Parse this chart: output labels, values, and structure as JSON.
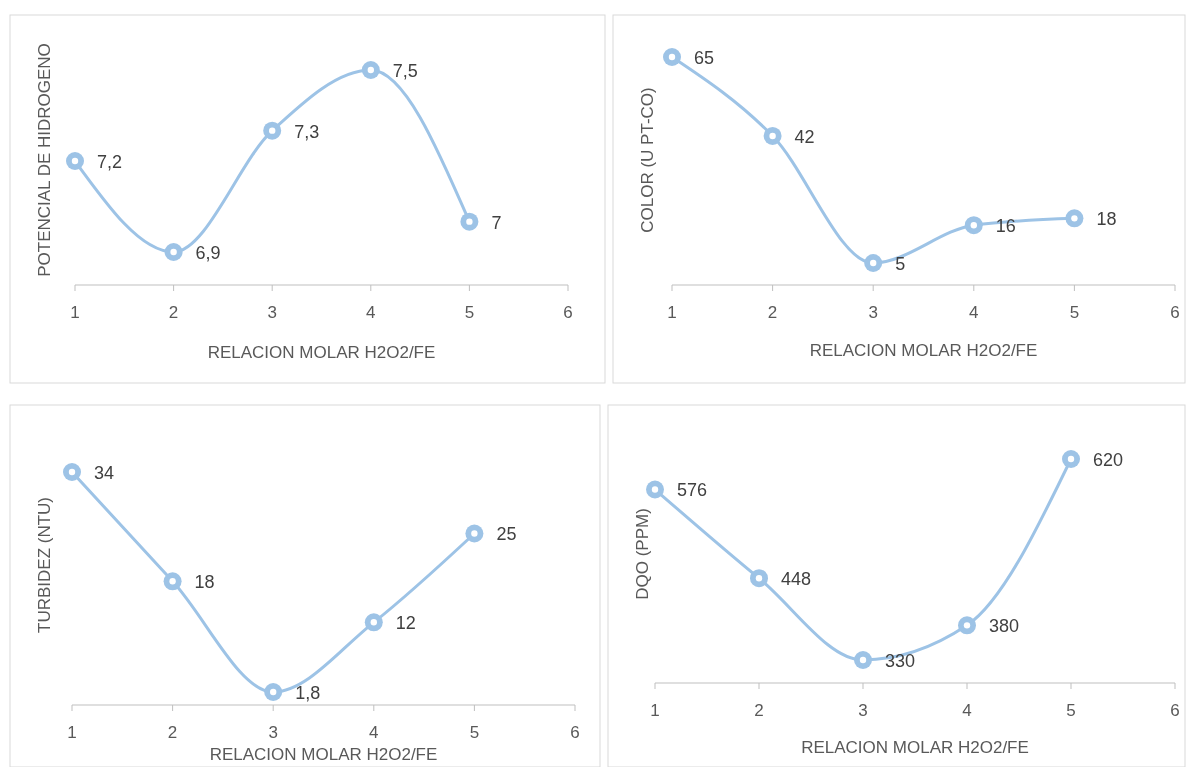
{
  "chart_data": [
    {
      "type": "line",
      "ylabel": "POTENCIAL DE HIDROGENO",
      "xlabel": "RELACION MOLAR H2O2/FE",
      "x": [
        1,
        2,
        3,
        4,
        5
      ],
      "xlim": [
        1,
        6
      ],
      "xticks": [
        1,
        2,
        3,
        4,
        5,
        6
      ],
      "marker": "circle",
      "series": [
        {
          "color": "#9dc3e6",
          "values": [
            7.2,
            6.9,
            7.3,
            7.5,
            7
          ],
          "value_labels": [
            "7,2",
            "6,9",
            "7,3",
            "7,5",
            "7"
          ]
        }
      ]
    },
    {
      "type": "line",
      "ylabel": "COLOR (U PT-CO)",
      "xlabel": "RELACION MOLAR H2O2/FE",
      "x": [
        1,
        2,
        3,
        4,
        5
      ],
      "xlim": [
        1,
        6
      ],
      "xticks": [
        1,
        2,
        3,
        4,
        5,
        6
      ],
      "marker": "circle",
      "data_labels": true,
      "series": [
        {
          "color": "#9dc3e6",
          "values": [
            65,
            42,
            5,
            16,
            18
          ]
        }
      ]
    },
    {
      "type": "line",
      "ylabel": "TURBIDEZ (NTU)",
      "xlabel": "RELACION MOLAR H2O2/FE",
      "x": [
        1,
        2,
        3,
        4,
        5
      ],
      "xlim": [
        1,
        6
      ],
      "xticks": [
        1,
        2,
        3,
        4,
        5,
        6
      ],
      "marker": "circle",
      "series": [
        {
          "color": "#9dc3e6",
          "values": [
            34,
            18,
            1.8,
            12,
            25
          ],
          "value_labels": [
            "34",
            "18",
            "1,8",
            "12",
            "25"
          ]
        }
      ]
    },
    {
      "type": "line",
      "ylabel": "DQO (PPM)",
      "xlabel": "RELACION MOLAR H2O2/FE",
      "x": [
        1,
        2,
        3,
        4,
        5
      ],
      "xlim": [
        1,
        6
      ],
      "xticks": [
        1,
        2,
        3,
        4,
        5,
        6
      ],
      "marker": "circle",
      "data_labels": true,
      "series": [
        {
          "color": "#9dc3e6",
          "values": [
            576,
            448,
            330,
            380,
            620
          ]
        }
      ]
    }
  ]
}
